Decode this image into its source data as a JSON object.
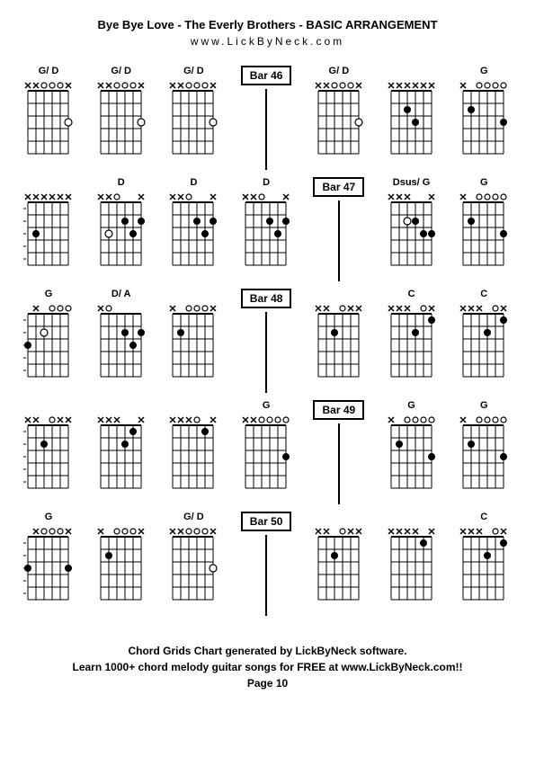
{
  "title": "Bye Bye Love - The Everly Brothers - BASIC ARRANGEMENT",
  "website": "www.LickByNeck.com",
  "footer": {
    "line1": "Chord Grids Chart generated by LickByNeck software.",
    "line2": "Learn 1000+ chord melody guitar songs for FREE at www.LickByNeck.com!!",
    "page": "Page 10"
  },
  "diagram_style": {
    "width": 56,
    "height": 100,
    "strings": 6,
    "frets": 6,
    "string_spacing": 9,
    "fret_spacing": 14,
    "grid_color": "#000000",
    "dot_radius": 4,
    "open_radius": 3,
    "x_size": 5
  },
  "rows": [
    [
      {
        "type": "chord",
        "label": "G/ D",
        "markers": "xxooox",
        "fingers": [
          {
            "s": 0,
            "f": 3,
            "open": true
          }
        ]
      },
      {
        "type": "chord",
        "label": "G/ D",
        "markers": "xxooox",
        "fingers": [
          {
            "s": 0,
            "f": 3,
            "open": true
          }
        ]
      },
      {
        "type": "chord",
        "label": "G/ D",
        "markers": "xxooox",
        "fingers": [
          {
            "s": 0,
            "f": 3,
            "open": true
          }
        ]
      },
      {
        "type": "bar",
        "label": "Bar 46"
      },
      {
        "type": "chord",
        "label": "G/ D",
        "markers": "xxooox",
        "fingers": [
          {
            "s": 0,
            "f": 3,
            "open": true
          }
        ]
      },
      {
        "type": "chord",
        "label": "",
        "markers": "xxxxxx",
        "fingers": [
          {
            "s": 3,
            "f": 2
          },
          {
            "s": 2,
            "f": 3
          }
        ]
      },
      {
        "type": "chord",
        "label": "G",
        "markers": "x oooo",
        "fingers": [
          {
            "s": 4,
            "f": 2
          },
          {
            "s": 0,
            "f": 3
          }
        ]
      }
    ],
    [
      {
        "type": "chord",
        "label": "",
        "markers": "xxxxxx",
        "fingers": [
          {
            "s": 4,
            "f": 3
          }
        ],
        "side": true
      },
      {
        "type": "chord",
        "label": "D",
        "markers": "xxo  x",
        "fingers": [
          {
            "s": 2,
            "f": 2
          },
          {
            "s": 1,
            "f": 3
          },
          {
            "s": 0,
            "f": 2
          },
          {
            "s": 4,
            "f": 3,
            "open": true
          }
        ]
      },
      {
        "type": "chord",
        "label": "D",
        "markers": "xxo  x",
        "fingers": [
          {
            "s": 2,
            "f": 2
          },
          {
            "s": 1,
            "f": 3
          },
          {
            "s": 0,
            "f": 2
          }
        ]
      },
      {
        "type": "chord",
        "label": "D",
        "markers": "xxo  x",
        "fingers": [
          {
            "s": 2,
            "f": 2
          },
          {
            "s": 1,
            "f": 3
          },
          {
            "s": 0,
            "f": 2
          }
        ]
      },
      {
        "type": "bar",
        "label": "Bar 47"
      },
      {
        "type": "chord",
        "label": "Dsus/ G",
        "markers": "xxx  x",
        "fingers": [
          {
            "s": 2,
            "f": 2
          },
          {
            "s": 1,
            "f": 3
          },
          {
            "s": 0,
            "f": 3
          },
          {
            "s": 3,
            "f": 2,
            "open": true
          }
        ]
      },
      {
        "type": "chord",
        "label": "G",
        "markers": "x oooo",
        "fingers": [
          {
            "s": 4,
            "f": 2
          },
          {
            "s": 0,
            "f": 3
          }
        ]
      }
    ],
    [
      {
        "type": "chord",
        "label": "G",
        "markers": " x ooo",
        "fingers": [
          {
            "s": 5,
            "f": 3
          },
          {
            "s": 3,
            "f": 2,
            "open": true
          }
        ],
        "side": true
      },
      {
        "type": "chord",
        "label": "D/ A",
        "markers": "xo    ",
        "fingers": [
          {
            "s": 2,
            "f": 2
          },
          {
            "s": 1,
            "f": 3
          },
          {
            "s": 0,
            "f": 2
          }
        ]
      },
      {
        "type": "chord",
        "label": "",
        "markers": "x ooox",
        "fingers": [
          {
            "s": 4,
            "f": 2
          }
        ]
      },
      {
        "type": "bar",
        "label": "Bar 48"
      },
      {
        "type": "chord",
        "label": "",
        "markers": "xx oxx",
        "fingers": [
          {
            "s": 3,
            "f": 2
          }
        ]
      },
      {
        "type": "chord",
        "label": "C",
        "markers": "xxx ox",
        "fingers": [
          {
            "s": 2,
            "f": 2
          },
          {
            "s": 0,
            "f": 1
          }
        ]
      },
      {
        "type": "chord",
        "label": "C",
        "markers": "xxx ox",
        "fingers": [
          {
            "s": 2,
            "f": 2
          },
          {
            "s": 0,
            "f": 1
          }
        ]
      }
    ],
    [
      {
        "type": "chord",
        "label": "",
        "markers": "xx oxx",
        "fingers": [
          {
            "s": 3,
            "f": 2
          }
        ],
        "side": true
      },
      {
        "type": "chord",
        "label": "",
        "markers": "xxx  x",
        "fingers": [
          {
            "s": 2,
            "f": 2
          },
          {
            "s": 1,
            "f": 1
          }
        ]
      },
      {
        "type": "chord",
        "label": "",
        "markers": "xxxo x",
        "fingers": [
          {
            "s": 1,
            "f": 1
          }
        ]
      },
      {
        "type": "chord",
        "label": "G",
        "markers": "xxoooo",
        "fingers": [
          {
            "s": 0,
            "f": 3
          }
        ]
      },
      {
        "type": "bar",
        "label": "Bar 49"
      },
      {
        "type": "chord",
        "label": "G",
        "markers": "x oooo",
        "fingers": [
          {
            "s": 4,
            "f": 2
          },
          {
            "s": 0,
            "f": 3
          }
        ]
      },
      {
        "type": "chord",
        "label": "G",
        "markers": "x oooo",
        "fingers": [
          {
            "s": 4,
            "f": 2
          },
          {
            "s": 0,
            "f": 3
          }
        ]
      }
    ],
    [
      {
        "type": "chord",
        "label": "G",
        "markers": " xooox",
        "fingers": [
          {
            "s": 5,
            "f": 3
          },
          {
            "s": 0,
            "f": 3
          }
        ],
        "side": true
      },
      {
        "type": "chord",
        "label": "",
        "markers": "x ooox",
        "fingers": [
          {
            "s": 4,
            "f": 2
          }
        ]
      },
      {
        "type": "chord",
        "label": "G/ D",
        "markers": "xxooox",
        "fingers": [
          {
            "s": 0,
            "f": 3,
            "open": true
          }
        ]
      },
      {
        "type": "bar",
        "label": "Bar 50"
      },
      {
        "type": "chord",
        "label": "",
        "markers": "xx oxx",
        "fingers": [
          {
            "s": 3,
            "f": 2
          }
        ]
      },
      {
        "type": "chord",
        "label": "",
        "markers": "xxxx x",
        "fingers": [
          {
            "s": 1,
            "f": 1
          }
        ]
      },
      {
        "type": "chord",
        "label": "C",
        "markers": "xxx ox",
        "fingers": [
          {
            "s": 2,
            "f": 2
          },
          {
            "s": 0,
            "f": 1
          }
        ]
      }
    ]
  ]
}
